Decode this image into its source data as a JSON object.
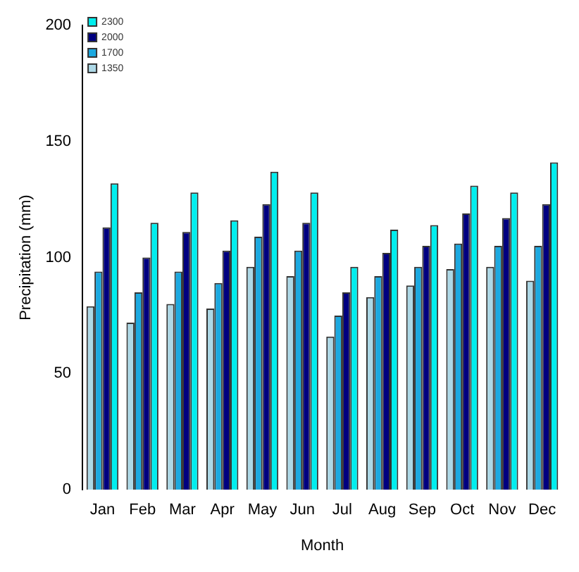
{
  "chart_data": {
    "type": "bar",
    "xlabel": "Month",
    "ylabel": "Precipitation (mm)",
    "categories": [
      "Jan",
      "Feb",
      "Mar",
      "Apr",
      "May",
      "Jun",
      "Jul",
      "Aug",
      "Sep",
      "Oct",
      "Nov",
      "Dec"
    ],
    "series": [
      {
        "name": "1350",
        "color": "#add8e6",
        "values": [
          79,
          72,
          80,
          78,
          96,
          92,
          66,
          83,
          88,
          95,
          96,
          90
        ]
      },
      {
        "name": "1700",
        "color": "#1ca9e0",
        "values": [
          94,
          85,
          94,
          89,
          109,
          103,
          75,
          92,
          96,
          106,
          105,
          105
        ]
      },
      {
        "name": "2000",
        "color": "#000080",
        "values": [
          113,
          100,
          111,
          103,
          123,
          115,
          85,
          102,
          105,
          119,
          117,
          123
        ]
      },
      {
        "name": "2300",
        "color": "#00eeee",
        "values": [
          132,
          115,
          128,
          116,
          137,
          128,
          96,
          112,
          114,
          131,
          128,
          141
        ]
      }
    ],
    "ylim": [
      0,
      200
    ],
    "yticks": [
      0,
      50,
      100,
      150,
      200
    ],
    "grid": false,
    "legend": "top left"
  }
}
